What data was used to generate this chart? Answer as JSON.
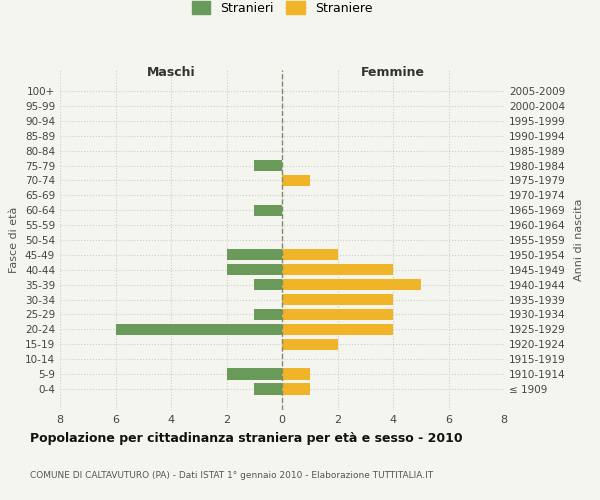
{
  "age_groups": [
    "100+",
    "95-99",
    "90-94",
    "85-89",
    "80-84",
    "75-79",
    "70-74",
    "65-69",
    "60-64",
    "55-59",
    "50-54",
    "45-49",
    "40-44",
    "35-39",
    "30-34",
    "25-29",
    "20-24",
    "15-19",
    "10-14",
    "5-9",
    "0-4"
  ],
  "birth_years": [
    "≤ 1909",
    "1910-1914",
    "1915-1919",
    "1920-1924",
    "1925-1929",
    "1930-1934",
    "1935-1939",
    "1940-1944",
    "1945-1949",
    "1950-1954",
    "1955-1959",
    "1960-1964",
    "1965-1969",
    "1970-1974",
    "1975-1979",
    "1980-1984",
    "1985-1989",
    "1990-1994",
    "1995-1999",
    "2000-2004",
    "2005-2009"
  ],
  "males": [
    0,
    0,
    0,
    0,
    0,
    1,
    0,
    0,
    1,
    0,
    0,
    2,
    2,
    1,
    0,
    1,
    6,
    0,
    0,
    2,
    1
  ],
  "females": [
    0,
    0,
    0,
    0,
    0,
    0,
    1,
    0,
    0,
    0,
    0,
    2,
    4,
    5,
    4,
    4,
    4,
    2,
    0,
    1,
    1
  ],
  "male_color": "#6a9a5a",
  "female_color": "#f0b429",
  "title": "Popolazione per cittadinanza straniera per età e sesso - 2010",
  "subtitle": "COMUNE DI CALTAVUTURO (PA) - Dati ISTAT 1° gennaio 2010 - Elaborazione TUTTITALIA.IT",
  "xlabel_left": "Maschi",
  "xlabel_right": "Femmine",
  "ylabel_left": "Fasce di età",
  "ylabel_right": "Anni di nascita",
  "legend_male": "Stranieri",
  "legend_female": "Straniere",
  "xlim": 8,
  "background_color": "#f5f5f0",
  "grid_color": "#cccccc",
  "bar_height": 0.75
}
